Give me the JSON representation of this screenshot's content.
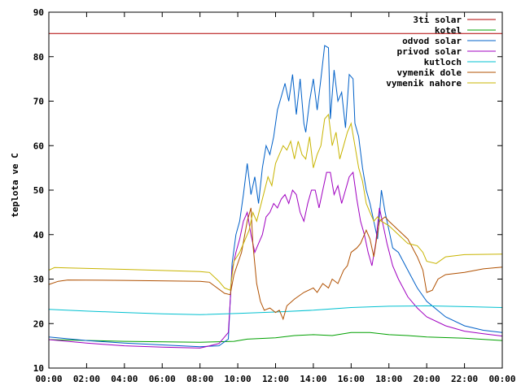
{
  "chart_data": {
    "type": "line",
    "title": "",
    "xlabel": "",
    "ylabel": "teplota ve C",
    "ylim": [
      10,
      90
    ],
    "xlim": [
      0,
      24
    ],
    "yticks": [
      10,
      20,
      30,
      40,
      50,
      60,
      70,
      80,
      90
    ],
    "xticks": [
      {
        "v": 0,
        "label": "00:00"
      },
      {
        "v": 2,
        "label": "02:00"
      },
      {
        "v": 4,
        "label": "04:00"
      },
      {
        "v": 6,
        "label": "06:00"
      },
      {
        "v": 8,
        "label": "08:00"
      },
      {
        "v": 10,
        "label": "10:00"
      },
      {
        "v": 12,
        "label": "12:00"
      },
      {
        "v": 14,
        "label": "14:00"
      },
      {
        "v": 16,
        "label": "16:00"
      },
      {
        "v": 18,
        "label": "18:00"
      },
      {
        "v": 20,
        "label": "20:00"
      },
      {
        "v": 22,
        "label": "22:00"
      },
      {
        "v": 24,
        "label": "00:00"
      }
    ],
    "grid": false,
    "legend_position": "top-right",
    "series": [
      {
        "name": "3ti solar",
        "color": "#b00000",
        "points": [
          [
            0,
            85.2
          ],
          [
            24,
            85.2
          ]
        ]
      },
      {
        "name": "kotel",
        "color": "#00a000",
        "points": [
          [
            0,
            16.4
          ],
          [
            4,
            16.0
          ],
          [
            8,
            15.8
          ],
          [
            9.8,
            16.0
          ],
          [
            10.5,
            16.5
          ],
          [
            12,
            16.8
          ],
          [
            13,
            17.3
          ],
          [
            14,
            17.5
          ],
          [
            15,
            17.3
          ],
          [
            16,
            18.0
          ],
          [
            17,
            18.0
          ],
          [
            18,
            17.5
          ],
          [
            19,
            17.3
          ],
          [
            20,
            17.0
          ],
          [
            22,
            16.7
          ],
          [
            24,
            16.2
          ]
        ]
      },
      {
        "name": "odvod solar",
        "color": "#0060c8",
        "points": [
          [
            0,
            17.0
          ],
          [
            2,
            16.2
          ],
          [
            4,
            15.6
          ],
          [
            6,
            15.2
          ],
          [
            8,
            14.8
          ],
          [
            9,
            15.0
          ],
          [
            9.5,
            16.5
          ],
          [
            9.7,
            33.5
          ],
          [
            9.9,
            40
          ],
          [
            10.1,
            43
          ],
          [
            10.3,
            49
          ],
          [
            10.5,
            56
          ],
          [
            10.7,
            49
          ],
          [
            10.9,
            53
          ],
          [
            11.1,
            47
          ],
          [
            11.3,
            55
          ],
          [
            11.5,
            60
          ],
          [
            11.7,
            58
          ],
          [
            11.9,
            62
          ],
          [
            12.1,
            68
          ],
          [
            12.3,
            71
          ],
          [
            12.5,
            74
          ],
          [
            12.7,
            70
          ],
          [
            12.9,
            76
          ],
          [
            13.1,
            67
          ],
          [
            13.3,
            75
          ],
          [
            13.5,
            65
          ],
          [
            13.6,
            63
          ],
          [
            13.8,
            70
          ],
          [
            14.0,
            75
          ],
          [
            14.2,
            68
          ],
          [
            14.4,
            75
          ],
          [
            14.6,
            82.5
          ],
          [
            14.8,
            82
          ],
          [
            14.9,
            66
          ],
          [
            15.1,
            77
          ],
          [
            15.3,
            70
          ],
          [
            15.5,
            72
          ],
          [
            15.7,
            64
          ],
          [
            15.9,
            76
          ],
          [
            16.1,
            75
          ],
          [
            16.2,
            65
          ],
          [
            16.4,
            62
          ],
          [
            16.6,
            55
          ],
          [
            16.8,
            50
          ],
          [
            17.0,
            47
          ],
          [
            17.2,
            43
          ],
          [
            17.4,
            39
          ],
          [
            17.6,
            50
          ],
          [
            17.8,
            45
          ],
          [
            18.0,
            41
          ],
          [
            18.2,
            37
          ],
          [
            18.5,
            36
          ],
          [
            19,
            32
          ],
          [
            19.5,
            28
          ],
          [
            20,
            25
          ],
          [
            21,
            21.5
          ],
          [
            22,
            19.5
          ],
          [
            23,
            18.5
          ],
          [
            24,
            18.0
          ]
        ]
      },
      {
        "name": "privod solar",
        "color": "#a000c0",
        "points": [
          [
            0,
            16.4
          ],
          [
            2,
            15.6
          ],
          [
            4,
            15.0
          ],
          [
            6,
            14.7
          ],
          [
            8,
            14.5
          ],
          [
            9,
            15.5
          ],
          [
            9.5,
            18.0
          ],
          [
            9.7,
            32
          ],
          [
            9.9,
            36
          ],
          [
            10.1,
            39
          ],
          [
            10.3,
            43
          ],
          [
            10.5,
            45
          ],
          [
            10.7,
            40
          ],
          [
            10.9,
            36
          ],
          [
            11.1,
            38
          ],
          [
            11.3,
            40
          ],
          [
            11.5,
            44
          ],
          [
            11.7,
            45
          ],
          [
            11.9,
            47
          ],
          [
            12.1,
            46
          ],
          [
            12.3,
            48
          ],
          [
            12.5,
            49
          ],
          [
            12.7,
            47
          ],
          [
            12.9,
            50
          ],
          [
            13.1,
            49
          ],
          [
            13.3,
            45
          ],
          [
            13.5,
            43
          ],
          [
            13.7,
            47
          ],
          [
            13.9,
            50
          ],
          [
            14.1,
            50
          ],
          [
            14.3,
            46
          ],
          [
            14.5,
            50
          ],
          [
            14.7,
            54
          ],
          [
            14.9,
            54
          ],
          [
            15.1,
            49
          ],
          [
            15.3,
            51
          ],
          [
            15.5,
            47
          ],
          [
            15.7,
            50
          ],
          [
            15.9,
            53
          ],
          [
            16.1,
            54
          ],
          [
            16.3,
            48
          ],
          [
            16.5,
            43
          ],
          [
            16.7,
            40
          ],
          [
            16.9,
            36
          ],
          [
            17.1,
            33
          ],
          [
            17.3,
            38
          ],
          [
            17.5,
            46
          ],
          [
            17.7,
            42
          ],
          [
            17.9,
            38
          ],
          [
            18.2,
            33
          ],
          [
            18.5,
            30
          ],
          [
            19,
            26
          ],
          [
            19.5,
            23.5
          ],
          [
            20,
            21.5
          ],
          [
            21,
            19.5
          ],
          [
            22,
            18.3
          ],
          [
            23,
            17.7
          ],
          [
            24,
            17.2
          ]
        ]
      },
      {
        "name": "kutloch",
        "color": "#00c0d0",
        "points": [
          [
            0,
            23.2
          ],
          [
            2,
            22.8
          ],
          [
            4,
            22.5
          ],
          [
            6,
            22.2
          ],
          [
            8,
            22.0
          ],
          [
            10,
            22.3
          ],
          [
            12,
            22.6
          ],
          [
            14,
            23.0
          ],
          [
            16,
            23.6
          ],
          [
            18,
            23.9
          ],
          [
            20,
            24.0
          ],
          [
            22,
            23.8
          ],
          [
            24,
            23.6
          ]
        ]
      },
      {
        "name": "vymenik dole",
        "color": "#b05000",
        "points": [
          [
            0,
            28.8
          ],
          [
            0.5,
            29.5
          ],
          [
            1,
            29.8
          ],
          [
            4,
            29.7
          ],
          [
            8,
            29.5
          ],
          [
            8.5,
            29.3
          ],
          [
            9.3,
            26.8
          ],
          [
            9.6,
            26.5
          ],
          [
            9.8,
            31
          ],
          [
            10.2,
            36
          ],
          [
            10.5,
            43
          ],
          [
            10.7,
            46
          ],
          [
            10.8,
            38
          ],
          [
            11.0,
            29
          ],
          [
            11.2,
            25
          ],
          [
            11.4,
            23
          ],
          [
            11.7,
            23.5
          ],
          [
            12.0,
            22.5
          ],
          [
            12.2,
            23
          ],
          [
            12.4,
            21
          ],
          [
            12.6,
            24
          ],
          [
            13,
            25.5
          ],
          [
            13.5,
            27
          ],
          [
            14,
            28
          ],
          [
            14.2,
            27
          ],
          [
            14.5,
            29
          ],
          [
            14.8,
            28
          ],
          [
            15,
            30
          ],
          [
            15.3,
            29
          ],
          [
            15.6,
            32
          ],
          [
            15.8,
            33
          ],
          [
            16,
            36
          ],
          [
            16.3,
            37
          ],
          [
            16.5,
            38
          ],
          [
            16.8,
            41
          ],
          [
            17.0,
            39
          ],
          [
            17.2,
            35
          ],
          [
            17.5,
            43
          ],
          [
            17.8,
            44
          ],
          [
            18,
            43
          ],
          [
            18.5,
            41
          ],
          [
            19,
            39
          ],
          [
            19.5,
            35
          ],
          [
            19.8,
            32
          ],
          [
            20.0,
            27
          ],
          [
            20.3,
            27.5
          ],
          [
            20.6,
            30
          ],
          [
            21,
            31
          ],
          [
            22,
            31.5
          ],
          [
            23,
            32.3
          ],
          [
            24,
            32.7
          ]
        ]
      },
      {
        "name": "vymenik nahore",
        "color": "#c8b400",
        "points": [
          [
            0,
            32
          ],
          [
            0.3,
            32.6
          ],
          [
            1,
            32.5
          ],
          [
            4,
            32.2
          ],
          [
            8,
            31.7
          ],
          [
            8.5,
            31.5
          ],
          [
            9.0,
            29.5
          ],
          [
            9.3,
            28
          ],
          [
            9.6,
            27.5
          ],
          [
            9.8,
            34
          ],
          [
            10.1,
            36
          ],
          [
            10.4,
            39
          ],
          [
            10.6,
            41
          ],
          [
            10.8,
            45
          ],
          [
            11.0,
            43
          ],
          [
            11.3,
            48
          ],
          [
            11.6,
            53
          ],
          [
            11.8,
            51
          ],
          [
            12.0,
            56
          ],
          [
            12.2,
            58
          ],
          [
            12.4,
            60
          ],
          [
            12.6,
            59
          ],
          [
            12.8,
            61
          ],
          [
            13.0,
            57
          ],
          [
            13.2,
            61
          ],
          [
            13.4,
            58
          ],
          [
            13.6,
            57
          ],
          [
            13.8,
            62
          ],
          [
            14.0,
            55
          ],
          [
            14.2,
            58
          ],
          [
            14.4,
            60
          ],
          [
            14.6,
            66
          ],
          [
            14.8,
            67
          ],
          [
            15.0,
            60
          ],
          [
            15.2,
            63
          ],
          [
            15.4,
            57
          ],
          [
            15.6,
            60
          ],
          [
            15.8,
            63
          ],
          [
            16.0,
            65
          ],
          [
            16.2,
            60
          ],
          [
            16.4,
            55
          ],
          [
            16.6,
            52
          ],
          [
            16.8,
            47
          ],
          [
            17.0,
            45
          ],
          [
            17.2,
            43
          ],
          [
            17.4,
            44
          ],
          [
            17.6,
            43
          ],
          [
            18,
            42
          ],
          [
            18.5,
            40
          ],
          [
            19,
            38
          ],
          [
            19.5,
            37.5
          ],
          [
            19.8,
            36
          ],
          [
            20.0,
            34
          ],
          [
            20.5,
            33.5
          ],
          [
            21,
            35
          ],
          [
            22,
            35.5
          ],
          [
            24,
            35.6
          ]
        ]
      }
    ]
  }
}
